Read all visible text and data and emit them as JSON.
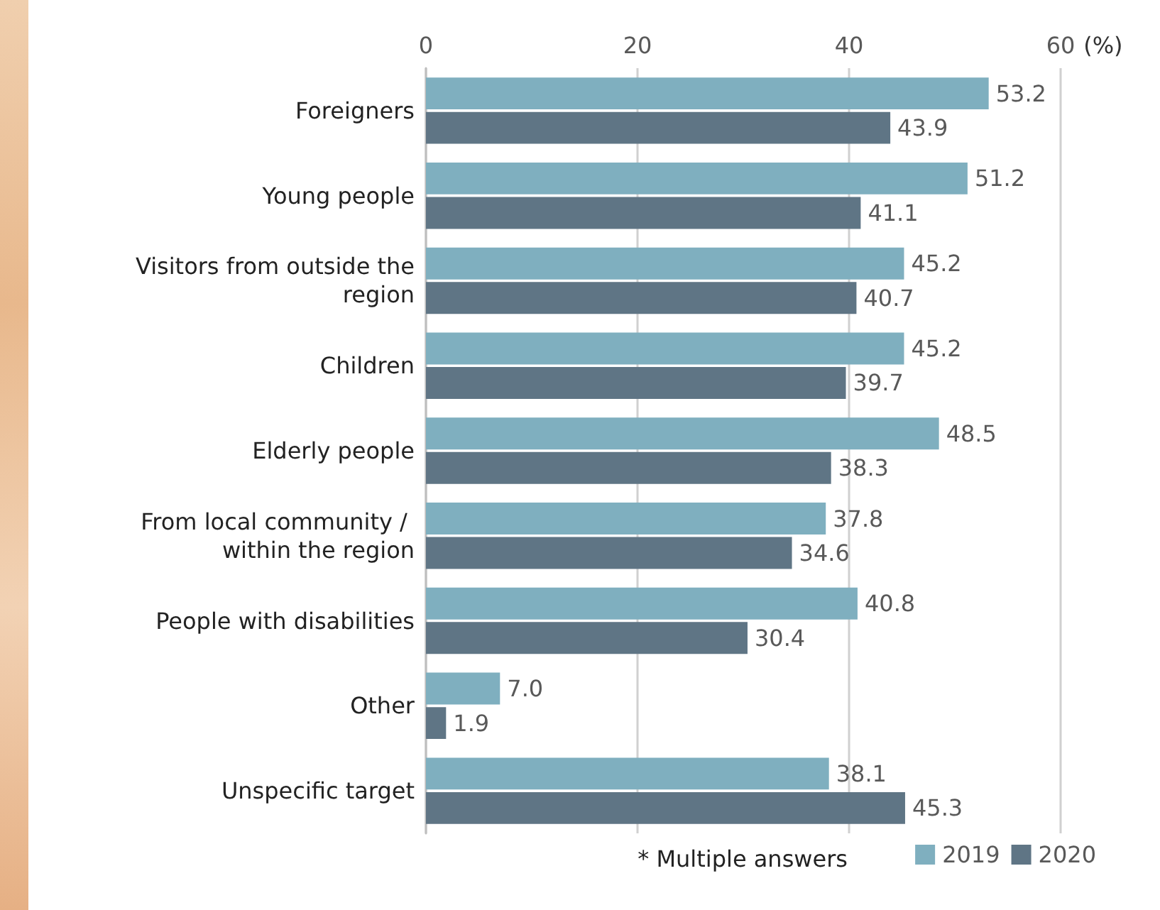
{
  "chart_data": {
    "type": "bar",
    "orientation": "horizontal",
    "xlabel": "(%)",
    "categories": [
      "Foreigners",
      "Young people",
      "Visitors from outside the region",
      "Children",
      "Elderly people",
      "From local community / within the region",
      "People with disabilities",
      "Other",
      "Unspecific target"
    ],
    "series": [
      {
        "name": "2019",
        "color": "#7fafbf",
        "values": [
          53.2,
          51.2,
          45.2,
          45.2,
          48.5,
          37.8,
          40.8,
          7.0,
          38.1
        ],
        "value_labels": [
          "53.2",
          "51.2",
          "45.2",
          "45.2",
          "48.5",
          "37.8",
          "40.8",
          "7.0",
          "38.1"
        ]
      },
      {
        "name": "2020",
        "color": "#5f7585",
        "values": [
          43.9,
          41.1,
          40.7,
          39.7,
          38.3,
          34.6,
          30.4,
          1.9,
          45.3
        ],
        "value_labels": [
          "43.9",
          "41.1",
          "40.7",
          "39.7",
          "38.3",
          "34.6",
          "30.4",
          "1.9",
          "45.3"
        ]
      }
    ],
    "xlim": [
      0,
      60
    ],
    "xticks": [
      0,
      20,
      40,
      60
    ],
    "grid": "x",
    "legend": "bottom right",
    "annotations": [
      "* Multiple answers"
    ]
  }
}
